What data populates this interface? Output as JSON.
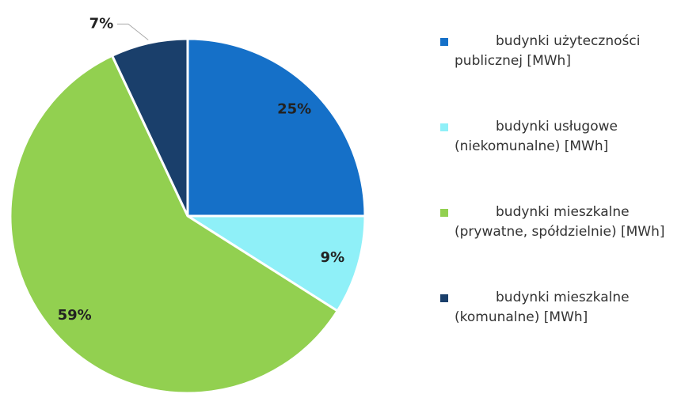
{
  "chart_data": {
    "type": "pie",
    "categories": [
      "budynki użyteczności publicznej [MWh]",
      "budynki usługowe (niekomunalne) [MWh]",
      "budynki mieszkalne (prywatne, spółdzielnie) [MWh]",
      "budynki mieszkalne (komunalne) [MWh]"
    ],
    "values": [
      25,
      9,
      59,
      7
    ],
    "value_labels": [
      "25%",
      "9%",
      "59%",
      "7%"
    ],
    "colors": [
      "#1570c8",
      "#8ff0f8",
      "#92d050",
      "#1a3f6b"
    ],
    "legend": "right"
  }
}
